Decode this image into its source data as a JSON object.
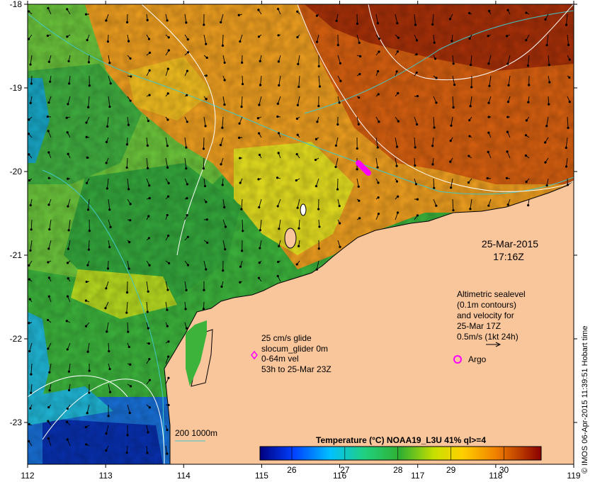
{
  "map": {
    "lon_ticks": [
      "112",
      "113",
      "114",
      "115",
      "116",
      "117",
      "118",
      "119"
    ],
    "lat_ticks": [
      "-18",
      "-19",
      "-20",
      "-21",
      "-22",
      "-23"
    ],
    "lon_range": [
      112,
      119
    ],
    "lat_range": [
      -23.5,
      -18
    ],
    "colors": {
      "land": "#f9c59b",
      "coast": "#000000",
      "isobath": "#40c8c8",
      "sealevel_contour": "#ffffff",
      "vectors": "#000000",
      "glider": "#ff00ff",
      "argo": "#ff00ff"
    }
  },
  "datestamp": {
    "date": "25-Mar-2015",
    "time": "17:16Z"
  },
  "legend_altimetry": {
    "line1": "Altimetric sealevel",
    "line2": "(0.1m contours)",
    "line3": "and velocity for",
    "line4": "25-Mar 17Z",
    "line5": "0.5m/s (1kt 24h)"
  },
  "argo": {
    "label": "Argo"
  },
  "glider_legend": {
    "line1": "25 cm/s glide",
    "line2": "slocum_glider 0m",
    "line3": "0-64m vel",
    "line4": "53h to 25-Mar 23Z"
  },
  "isobath_legend": {
    "label": "200  1000m"
  },
  "colorbar": {
    "title": "Temperature (°C) NOAA19_L3U 41% ql>=4",
    "ticks": [
      "26",
      "27",
      "28",
      "29",
      "30"
    ],
    "range": [
      25.4,
      30.7
    ]
  },
  "credit": "© IMOS 06-Apr-2015 11:39:51 Hobart time"
}
